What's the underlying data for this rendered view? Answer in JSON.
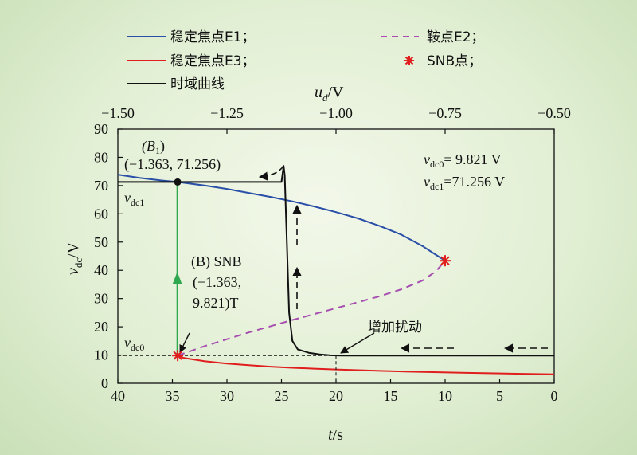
{
  "chart_data": {
    "type": "line",
    "legend": {
      "placement": "top",
      "entries": [
        {
          "label": "稳定焦点E1；",
          "color": "#2a4fa8",
          "style": "solid"
        },
        {
          "label": "鞍点E2；",
          "color": "#a64fb0",
          "style": "dashed"
        },
        {
          "label": "稳定焦点E3；",
          "color": "#e01e1e",
          "style": "solid"
        },
        {
          "label": "SNB点；",
          "color": "#e01e1e",
          "style": "marker"
        },
        {
          "label": "时域曲线",
          "color": "#111111",
          "style": "solid"
        }
      ]
    },
    "x_bottom": {
      "label": "t/s",
      "range": [
        40,
        0
      ],
      "ticks": [
        40,
        35,
        30,
        25,
        20,
        15,
        10,
        5,
        0
      ]
    },
    "x_top": {
      "label": "ud/V",
      "range": [
        -1.5,
        -0.5
      ],
      "ticks": [
        "−1.50",
        "−1.25",
        "−1.00",
        "−0.75",
        "−0.50"
      ]
    },
    "y": {
      "label": "vdc/V",
      "range": [
        0,
        90
      ],
      "ticks": [
        0,
        10,
        20,
        30,
        40,
        50,
        60,
        70,
        80,
        90
      ]
    },
    "grid": false,
    "series": [
      {
        "name": "稳定焦点E1",
        "axis": "ud",
        "color": "#2a4fa8",
        "x": [
          -1.5,
          -1.45,
          -1.4,
          -1.363,
          -1.3,
          -1.25,
          -1.2,
          -1.15,
          -1.1,
          -1.05,
          -1.0,
          -0.95,
          -0.9,
          -0.85,
          -0.8,
          -0.77,
          -0.75
        ],
        "y": [
          73.9,
          72.7,
          71.8,
          71.256,
          70.0,
          68.8,
          67.4,
          66.0,
          64.4,
          62.6,
          60.6,
          58.4,
          55.7,
          52.6,
          48.4,
          45.4,
          43.4
        ]
      },
      {
        "name": "鞍点E2",
        "axis": "ud",
        "color": "#a64fb0",
        "dashed": true,
        "x": [
          -1.363,
          -1.3,
          -1.25,
          -1.2,
          -1.15,
          -1.1,
          -1.05,
          -1.0,
          -0.95,
          -0.9,
          -0.85,
          -0.8,
          -0.77,
          -0.75
        ],
        "y": [
          9.821,
          13.2,
          15.6,
          18.0,
          20.2,
          22.4,
          24.5,
          26.6,
          28.7,
          30.8,
          33.3,
          36.5,
          39.8,
          43.4
        ]
      },
      {
        "name": "稳定焦点E3",
        "axis": "ud",
        "color": "#e01e1e",
        "x": [
          -1.363,
          -1.35,
          -1.3,
          -1.25,
          -1.2,
          -1.15,
          -1.1,
          -1.05,
          -1.0,
          -0.9,
          -0.8,
          -0.7,
          -0.6,
          -0.5
        ],
        "y": [
          9.821,
          9.0,
          7.8,
          7.0,
          6.4,
          5.9,
          5.5,
          5.2,
          4.9,
          4.4,
          4.0,
          3.7,
          3.4,
          3.2
        ]
      },
      {
        "name": "时域曲线",
        "axis": "t",
        "color": "#111111",
        "x": [
          0,
          5,
          10,
          15,
          19.5,
          20.5,
          21.5,
          22.5,
          23.5,
          24.0,
          24.3,
          24.55,
          24.7,
          24.8,
          25.0,
          27,
          30,
          35,
          40
        ],
        "y": [
          9.821,
          9.821,
          9.821,
          9.821,
          9.83,
          9.9,
          10.2,
          10.8,
          12.0,
          15.0,
          25.0,
          55.0,
          73.5,
          77.0,
          71.256,
          71.256,
          71.256,
          71.256,
          71.256
        ]
      }
    ],
    "markers": [
      {
        "label": "SNB",
        "axis": "ud",
        "x": -0.75,
        "y": 43.4,
        "shape": "asterisk",
        "color": "#e01e1e"
      },
      {
        "label": "SNB",
        "axis": "ud",
        "x": -1.363,
        "y": 9.821,
        "shape": "asterisk",
        "color": "#e01e1e"
      },
      {
        "label": "B1",
        "axis": "ud",
        "x": -1.363,
        "y": 71.256,
        "shape": "dot",
        "color": "#111111"
      }
    ],
    "annotations": {
      "b1_line1": "(B",
      "b1_sub": "1",
      "b1_close": ")",
      "b1_line2": "(−1.363, 71.256)",
      "b_prefix": "(B) SNB",
      "b_line2": "(−1.363,",
      "b_line3": "9.821)T",
      "vdc1_mark": "v",
      "vdc1_sub": "dc1",
      "vdc0_mark": "v",
      "vdc0_sub": "dc0",
      "info1_main": "v",
      "info1_sub": "dc0",
      "info1_rest": "= 9.821 V",
      "info2_main": "v",
      "info2_sub": "dc1",
      "info2_rest": "=71.256 V",
      "perturb": "增加扰动"
    },
    "axis_text": {
      "y_main": "v",
      "y_sub": "dc",
      "y_rest": "/V",
      "xt_main": "t",
      "xt_rest": "/s",
      "xu_main": "u",
      "xu_sub": "d",
      "xu_rest": "/V"
    }
  }
}
